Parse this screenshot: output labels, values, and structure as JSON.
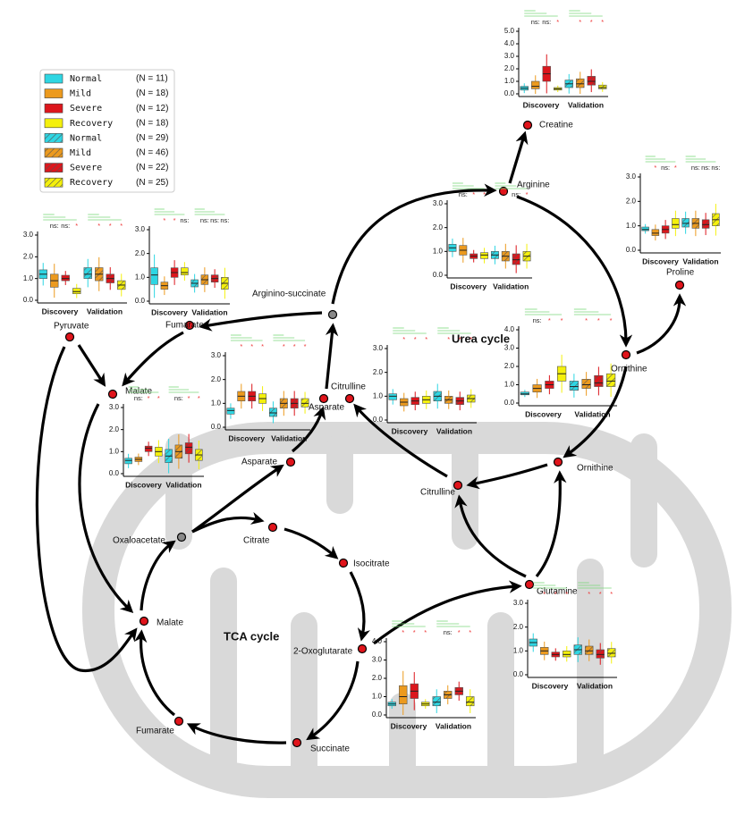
{
  "legend": [
    {
      "name": "Normal",
      "count": "(N = 11)",
      "color": "#2ed6e3",
      "hatched": false
    },
    {
      "name": "Mild",
      "count": "(N = 18)",
      "color": "#ec9a1e",
      "hatched": false
    },
    {
      "name": "Severe",
      "count": "(N = 12)",
      "color": "#dc161c",
      "hatched": false
    },
    {
      "name": "Recovery",
      "count": "(N = 18)",
      "color": "#f4f00c",
      "hatched": false
    },
    {
      "name": "Normal",
      "count": "(N = 29)",
      "color": "#2ed6e3",
      "hatched": true
    },
    {
      "name": "Mild",
      "count": "(N = 46)",
      "color": "#ec9a1e",
      "hatched": true
    },
    {
      "name": "Severe",
      "count": "(N = 22)",
      "color": "#dc161c",
      "hatched": true
    },
    {
      "name": "Recovery",
      "count": "(N = 25)",
      "color": "#f4f00c",
      "hatched": true
    }
  ],
  "cycles": [
    "Urea cycle",
    "TCA cycle"
  ],
  "nodes": [
    {
      "label": "Creatine",
      "kind": "measured"
    },
    {
      "label": "Arginine",
      "kind": "measured"
    },
    {
      "label": "Proline",
      "kind": "measured"
    },
    {
      "label": "Ornithine",
      "kind": "measured"
    },
    {
      "label": "Ornithine",
      "kind": "measured"
    },
    {
      "label": "Citrulline",
      "kind": "measured"
    },
    {
      "label": "Citrulline",
      "kind": "measured"
    },
    {
      "label": "Arginino-succinate",
      "kind": "intermediate"
    },
    {
      "label": "Fumarate",
      "kind": "measured"
    },
    {
      "label": "Pyruvate",
      "kind": "measured"
    },
    {
      "label": "Malate",
      "kind": "measured"
    },
    {
      "label": "Asparate",
      "kind": "measured"
    },
    {
      "label": "Asparate",
      "kind": "measured"
    },
    {
      "label": "Oxaloacetate",
      "kind": "intermediate"
    },
    {
      "label": "Citrate",
      "kind": "measured"
    },
    {
      "label": "Isocitrate",
      "kind": "measured"
    },
    {
      "label": "Glutamine",
      "kind": "measured"
    },
    {
      "label": "2-Oxoglutarate",
      "kind": "measured"
    },
    {
      "label": "Succinate",
      "kind": "measured"
    },
    {
      "label": "Fumarate",
      "kind": "measured"
    },
    {
      "label": "Malate",
      "kind": "measured"
    }
  ],
  "charts": [
    {
      "categories": [
        "Discovery",
        "Validation"
      ],
      "ylim": [
        0,
        5
      ],
      "yticks": [
        {
          "value": 0,
          "label": "0.0"
        },
        {
          "value": 1,
          "label": "1.0"
        },
        {
          "value": 2,
          "label": "2.0"
        },
        {
          "value": 3,
          "label": "3.0"
        },
        {
          "value": 4,
          "label": "4.0"
        },
        {
          "value": 5,
          "label": "5.0"
        }
      ],
      "boxes": [
        [
          0.3,
          0.45,
          0.6
        ],
        [
          0.4,
          0.6,
          1.0
        ],
        [
          1.0,
          1.6,
          2.2
        ],
        [
          0.3,
          0.4,
          0.5
        ],
        [
          0.5,
          0.8,
          1.1
        ],
        [
          0.5,
          0.8,
          1.2
        ],
        [
          0.7,
          1.0,
          1.4
        ],
        [
          0.4,
          0.5,
          0.7
        ]
      ],
      "significance": [
        [
          "ns:",
          "ns:",
          "*"
        ],
        [
          "*",
          "*",
          "*"
        ]
      ]
    },
    {
      "categories": [
        "Discovery",
        "Validation"
      ],
      "ylim": [
        0,
        3
      ],
      "yticks": [
        {
          "value": 0,
          "label": "0.0"
        },
        {
          "value": 1,
          "label": "1.0"
        },
        {
          "value": 2,
          "label": "2.0"
        },
        {
          "value": 3,
          "label": "3.0"
        }
      ],
      "boxes": [
        [
          1.0,
          1.15,
          1.3
        ],
        [
          0.85,
          1.05,
          1.25
        ],
        [
          0.7,
          0.8,
          0.9
        ],
        [
          0.7,
          0.85,
          0.95
        ],
        [
          0.7,
          0.85,
          1.0
        ],
        [
          0.6,
          0.8,
          1.0
        ],
        [
          0.45,
          0.65,
          0.9
        ],
        [
          0.6,
          0.8,
          1.0
        ]
      ],
      "significance": [
        [
          "ns:",
          "*",
          "*"
        ],
        [
          "*",
          "ns:",
          "*"
        ]
      ]
    },
    {
      "categories": [
        "Discovery",
        "Validation"
      ],
      "ylim": [
        0,
        3
      ],
      "yticks": [
        {
          "value": 0,
          "label": "0.0"
        },
        {
          "value": 1,
          "label": "1.0"
        },
        {
          "value": 2,
          "label": "2.0"
        },
        {
          "value": 3,
          "label": "3.0"
        }
      ],
      "boxes": [
        [
          0.8,
          0.85,
          0.95
        ],
        [
          0.6,
          0.7,
          0.85
        ],
        [
          0.7,
          0.85,
          1.0
        ],
        [
          0.9,
          1.05,
          1.3
        ],
        [
          0.95,
          1.1,
          1.3
        ],
        [
          0.9,
          1.1,
          1.3
        ],
        [
          0.9,
          1.05,
          1.25
        ],
        [
          1.0,
          1.25,
          1.5
        ]
      ],
      "significance": [
        [
          "*",
          "ns:",
          "*"
        ],
        [
          "ns:",
          "ns:",
          "ns:"
        ]
      ]
    },
    {
      "categories": [
        "Discovery",
        "Validation"
      ],
      "ylim": [
        0,
        4
      ],
      "yticks": [
        {
          "value": 0,
          "label": "0.0"
        },
        {
          "value": 1,
          "label": "1.0"
        },
        {
          "value": 2,
          "label": "2.0"
        },
        {
          "value": 3,
          "label": "3.0"
        },
        {
          "value": 4,
          "label": "4.0"
        }
      ],
      "boxes": [
        [
          0.45,
          0.5,
          0.6
        ],
        [
          0.6,
          0.8,
          1.0
        ],
        [
          0.8,
          1.0,
          1.2
        ],
        [
          1.2,
          1.6,
          2.0
        ],
        [
          0.7,
          0.9,
          1.2
        ],
        [
          0.8,
          1.0,
          1.3
        ],
        [
          0.9,
          1.1,
          1.5
        ],
        [
          0.9,
          1.2,
          1.6
        ]
      ],
      "significance": [
        [
          "ns:",
          "*",
          "*"
        ],
        [
          "*",
          "*",
          "*"
        ]
      ]
    },
    {
      "categories": [
        "Discovery",
        "Validation"
      ],
      "ylim": [
        0,
        3
      ],
      "yticks": [
        {
          "value": 0,
          "label": "0.0"
        },
        {
          "value": 1,
          "label": "1.0"
        },
        {
          "value": 2,
          "label": "2.0"
        },
        {
          "value": 3,
          "label": "3.0"
        }
      ],
      "boxes": [
        [
          0.85,
          1.0,
          1.1
        ],
        [
          0.6,
          0.75,
          0.9
        ],
        [
          0.65,
          0.8,
          0.95
        ],
        [
          0.7,
          0.85,
          1.0
        ],
        [
          0.8,
          1.0,
          1.2
        ],
        [
          0.7,
          0.85,
          1.0
        ],
        [
          0.65,
          0.8,
          0.95
        ],
        [
          0.75,
          0.9,
          1.05
        ]
      ],
      "significance": [
        [
          "*",
          "*",
          "*"
        ],
        [
          "*",
          "*",
          "*"
        ]
      ]
    },
    {
      "categories": [
        "Discovery",
        "Validation"
      ],
      "ylim": [
        0,
        3
      ],
      "yticks": [
        {
          "value": 0,
          "label": "0.0"
        },
        {
          "value": 1,
          "label": "1.0"
        },
        {
          "value": 2,
          "label": "2.0"
        },
        {
          "value": 3,
          "label": "3.0"
        }
      ],
      "boxes": [
        [
          0.55,
          0.7,
          0.8
        ],
        [
          1.1,
          1.3,
          1.5
        ],
        [
          1.1,
          1.3,
          1.5
        ],
        [
          1.0,
          1.2,
          1.4
        ],
        [
          0.45,
          0.6,
          0.8
        ],
        [
          0.8,
          1.0,
          1.2
        ],
        [
          0.8,
          1.0,
          1.2
        ],
        [
          0.85,
          1.0,
          1.2
        ]
      ],
      "significance": [
        [
          "*",
          "*",
          "*"
        ],
        [
          "*",
          "*",
          "*"
        ]
      ]
    },
    {
      "categories": [
        "Discovery",
        "Validation"
      ],
      "ylim": [
        0,
        3
      ],
      "yticks": [
        {
          "value": 0,
          "label": "0.0"
        },
        {
          "value": 1,
          "label": "1.0"
        },
        {
          "value": 2,
          "label": "2.0"
        },
        {
          "value": 3,
          "label": "3.0"
        }
      ],
      "boxes": [
        [
          1.0,
          1.2,
          1.4
        ],
        [
          0.6,
          0.9,
          1.2
        ],
        [
          0.9,
          1.0,
          1.15
        ],
        [
          0.3,
          0.4,
          0.55
        ],
        [
          1.0,
          1.2,
          1.5
        ],
        [
          0.9,
          1.2,
          1.5
        ],
        [
          0.8,
          1.0,
          1.2
        ],
        [
          0.5,
          0.7,
          0.9
        ]
      ],
      "significance": [
        [
          "ns:",
          "ns:",
          "*"
        ],
        [
          "*",
          "*",
          "*"
        ]
      ]
    },
    {
      "categories": [
        "Discovery",
        "Validation"
      ],
      "ylim": [
        0,
        3
      ],
      "yticks": [
        {
          "value": 0,
          "label": "0.0"
        },
        {
          "value": 1,
          "label": "1.0"
        },
        {
          "value": 2,
          "label": "2.0"
        },
        {
          "value": 3,
          "label": "3.0"
        }
      ],
      "boxes": [
        [
          0.7,
          1.1,
          1.4
        ],
        [
          0.5,
          0.65,
          0.8
        ],
        [
          1.0,
          1.2,
          1.4
        ],
        [
          1.1,
          1.2,
          1.4
        ],
        [
          0.6,
          0.75,
          0.9
        ],
        [
          0.7,
          0.9,
          1.1
        ],
        [
          0.8,
          0.95,
          1.1
        ],
        [
          0.5,
          0.75,
          1.0
        ]
      ],
      "significance": [
        [
          "*",
          "*",
          "ns:"
        ],
        [
          "ns:",
          "ns:",
          "ns:"
        ]
      ]
    },
    {
      "categories": [
        "Discovery",
        "Validation"
      ],
      "ylim": [
        0,
        3
      ],
      "yticks": [
        {
          "value": 0,
          "label": "0.0"
        },
        {
          "value": 1,
          "label": "1.0"
        },
        {
          "value": 2,
          "label": "2.0"
        },
        {
          "value": 3,
          "label": "3.0"
        }
      ],
      "boxes": [
        [
          0.45,
          0.6,
          0.7
        ],
        [
          0.55,
          0.65,
          0.75
        ],
        [
          1.0,
          1.15,
          1.25
        ],
        [
          0.8,
          1.0,
          1.2
        ],
        [
          0.5,
          0.8,
          1.1
        ],
        [
          0.7,
          1.0,
          1.3
        ],
        [
          0.9,
          1.2,
          1.4
        ],
        [
          0.6,
          0.85,
          1.1
        ]
      ],
      "significance": [
        [
          "ns:",
          "*",
          "*"
        ],
        [
          "ns:",
          "*",
          "*"
        ]
      ]
    },
    {
      "categories": [
        "Discovery",
        "Validation"
      ],
      "ylim": [
        0,
        3
      ],
      "yticks": [
        {
          "value": 0,
          "label": "0.0"
        },
        {
          "value": 1,
          "label": "1.0"
        },
        {
          "value": 2,
          "label": "2.0"
        },
        {
          "value": 3,
          "label": "3.0"
        }
      ],
      "boxes": [
        [
          1.2,
          1.35,
          1.5
        ],
        [
          0.85,
          1.0,
          1.15
        ],
        [
          0.75,
          0.85,
          0.95
        ],
        [
          0.75,
          0.85,
          1.0
        ],
        [
          0.85,
          1.05,
          1.25
        ],
        [
          0.85,
          1.0,
          1.2
        ],
        [
          0.7,
          0.85,
          1.05
        ],
        [
          0.75,
          0.9,
          1.1
        ]
      ],
      "significance": [
        [
          "*",
          "*",
          "*"
        ],
        [
          "*",
          "*",
          "*"
        ]
      ]
    },
    {
      "categories": [
        "Discovery",
        "Validation"
      ],
      "ylim": [
        0,
        4
      ],
      "yticks": [
        {
          "value": 0,
          "label": "0.0"
        },
        {
          "value": 1,
          "label": "1.0"
        },
        {
          "value": 2,
          "label": "2.0"
        },
        {
          "value": 3,
          "label": "3.0"
        },
        {
          "value": 4,
          "label": "4.0"
        }
      ],
      "boxes": [
        [
          0.5,
          0.6,
          0.7
        ],
        [
          0.6,
          1.0,
          1.6
        ],
        [
          0.9,
          1.3,
          1.7
        ],
        [
          0.5,
          0.6,
          0.7
        ],
        [
          0.5,
          0.7,
          1.0
        ],
        [
          0.9,
          1.1,
          1.3
        ],
        [
          1.1,
          1.3,
          1.5
        ],
        [
          0.5,
          0.7,
          1.0
        ]
      ],
      "significance": [
        [
          "*",
          "*",
          "*"
        ],
        [
          "ns:",
          "*",
          "*"
        ]
      ]
    }
  ]
}
